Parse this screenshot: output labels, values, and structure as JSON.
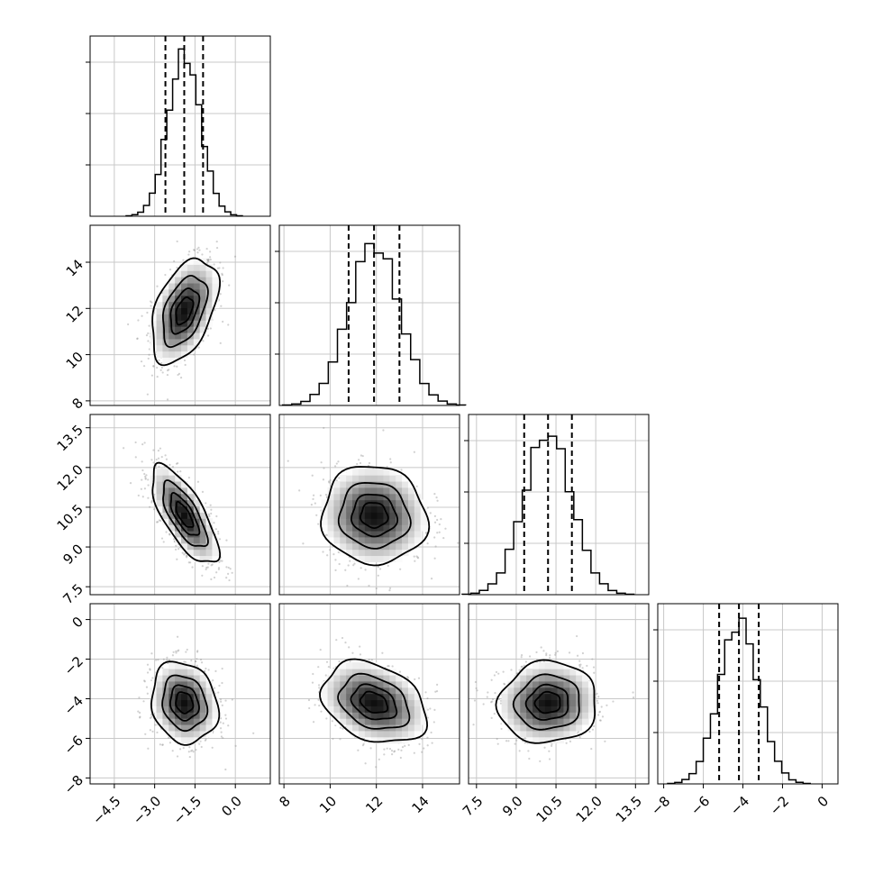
{
  "chart_data": {
    "type": "corner",
    "n_params": 4,
    "params": [
      {
        "index": 0,
        "mean": -1.9,
        "std": 0.6,
        "quantiles": [
          -2.6,
          -1.9,
          -1.2
        ],
        "range": [
          -5.4,
          1.3
        ],
        "ticks": [
          -4.5,
          -3.0,
          -1.5,
          0.0
        ],
        "tick_labels": [
          "−4.5",
          "−3.0",
          "−1.5",
          "0.0"
        ]
      },
      {
        "index": 1,
        "mean": 11.9,
        "std": 1.1,
        "quantiles": [
          10.8,
          11.9,
          13.0
        ],
        "range": [
          7.8,
          15.6
        ],
        "ticks": [
          8,
          10,
          12,
          14
        ],
        "tick_labels": [
          "8",
          "10",
          "12",
          "14"
        ]
      },
      {
        "index": 2,
        "mean": 10.2,
        "std": 0.9,
        "quantiles": [
          9.3,
          10.2,
          11.1
        ],
        "range": [
          7.2,
          14.0
        ],
        "ticks": [
          7.5,
          9.0,
          10.5,
          12.0,
          13.5
        ],
        "tick_labels": [
          "7.5",
          "9.0",
          "10.5",
          "12.0",
          "13.5"
        ]
      },
      {
        "index": 3,
        "mean": -4.2,
        "std": 1.0,
        "quantiles": [
          -5.2,
          -4.2,
          -3.2
        ],
        "range": [
          -8.3,
          0.8
        ],
        "ticks": [
          -8,
          -6,
          -4,
          -2,
          0
        ],
        "tick_labels": [
          "−8",
          "−6",
          "−4",
          "−2",
          "0"
        ]
      }
    ],
    "correlations": [
      [
        0,
        1,
        0.45
      ],
      [
        0,
        2,
        -0.72
      ],
      [
        0,
        3,
        -0.15
      ],
      [
        1,
        2,
        -0.05
      ],
      [
        1,
        3,
        -0.3
      ],
      [
        2,
        3,
        0.05
      ]
    ],
    "histogram_bins": 20,
    "contour_levels": [
      0.12,
      0.39,
      0.68,
      0.87
    ],
    "grid": true,
    "colors": {
      "line": "#000000",
      "scatter": "#9a9a9a",
      "grid": "#c8c8c8",
      "background": "#ffffff"
    }
  }
}
